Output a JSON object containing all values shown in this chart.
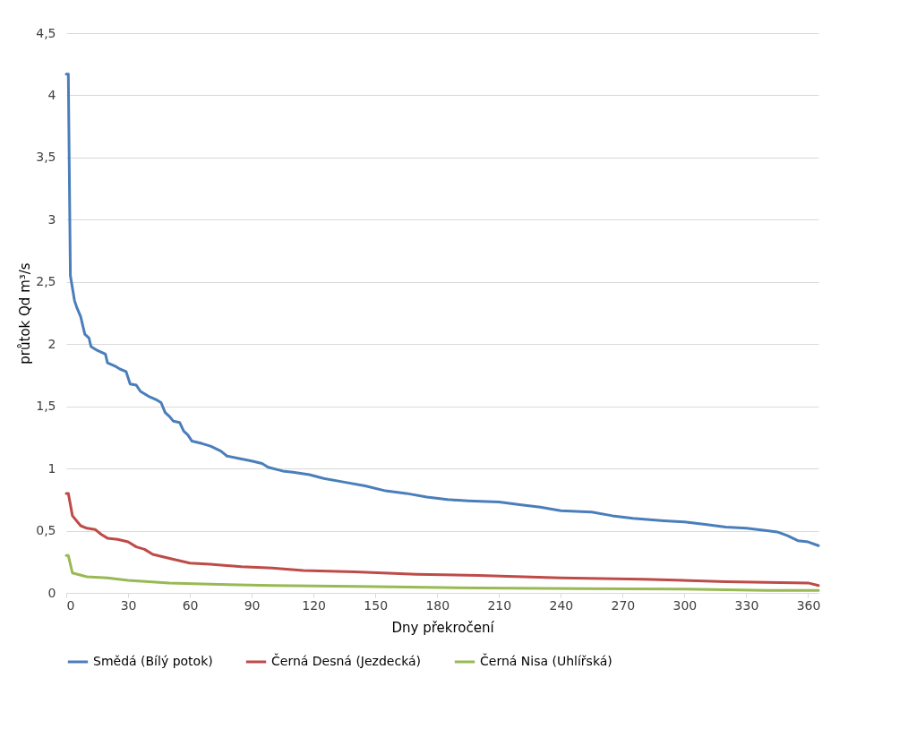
{
  "chart_data": {
    "type": "line",
    "xlabel": "Dny překročení",
    "ylabel": "průtok Qd m³/s",
    "xlim": [
      0,
      365
    ],
    "xticks": [
      0,
      30,
      60,
      90,
      120,
      150,
      180,
      210,
      240,
      270,
      300,
      330,
      360
    ],
    "ylim": [
      0,
      4.5
    ],
    "yticks": [
      0,
      {
        "value": 0.5,
        "label": "0,5"
      },
      1,
      {
        "value": 1.5,
        "label": "1,5"
      },
      2,
      {
        "value": 2.5,
        "label": "2,5"
      },
      3,
      {
        "value": 3.5,
        "label": "3,5"
      },
      4,
      {
        "value": 4.5,
        "label": "4,5"
      }
    ],
    "grid": "y",
    "legend": "bottom",
    "marker": "none",
    "line_style": "solid",
    "series": [
      {
        "name": "Smědá (Bílý potok)",
        "color": "#4a7ebb",
        "x": [
          0,
          1,
          2,
          3,
          4,
          5,
          7,
          8,
          9,
          11,
          12,
          15,
          19,
          20,
          24,
          26,
          29,
          31,
          34,
          36,
          40,
          44,
          46,
          48,
          50,
          52,
          55,
          57,
          59,
          61,
          66,
          70,
          75,
          78,
          84,
          90,
          95,
          98,
          105,
          110,
          118,
          125,
          135,
          145,
          155,
          165,
          175,
          185,
          195,
          210,
          220,
          230,
          240,
          255,
          265,
          275,
          290,
          300,
          310,
          320,
          330,
          340,
          345,
          350,
          355,
          360,
          365
        ],
        "values": [
          4.17,
          4.17,
          2.55,
          2.45,
          2.35,
          2.3,
          2.22,
          2.15,
          2.08,
          2.05,
          1.98,
          1.95,
          1.92,
          1.85,
          1.82,
          1.8,
          1.78,
          1.68,
          1.67,
          1.62,
          1.58,
          1.55,
          1.53,
          1.45,
          1.42,
          1.38,
          1.37,
          1.3,
          1.27,
          1.22,
          1.2,
          1.18,
          1.14,
          1.1,
          1.08,
          1.06,
          1.04,
          1.01,
          0.98,
          0.97,
          0.95,
          0.92,
          0.89,
          0.86,
          0.82,
          0.8,
          0.77,
          0.75,
          0.74,
          0.73,
          0.71,
          0.69,
          0.66,
          0.65,
          0.62,
          0.6,
          0.58,
          0.57,
          0.55,
          0.53,
          0.52,
          0.5,
          0.49,
          0.46,
          0.42,
          0.41,
          0.38
        ]
      },
      {
        "name": "Černá Desná (Jezdecká)",
        "color": "#be4b48",
        "x": [
          0,
          1,
          3,
          5,
          7,
          10,
          14,
          17,
          20,
          25,
          30,
          34,
          38,
          42,
          47,
          52,
          60,
          70,
          85,
          100,
          115,
          140,
          170,
          200,
          240,
          280,
          320,
          340,
          360,
          365
        ],
        "values": [
          0.8,
          0.8,
          0.62,
          0.58,
          0.54,
          0.52,
          0.51,
          0.47,
          0.44,
          0.43,
          0.41,
          0.37,
          0.35,
          0.31,
          0.29,
          0.27,
          0.24,
          0.23,
          0.21,
          0.2,
          0.18,
          0.17,
          0.15,
          0.14,
          0.12,
          0.11,
          0.09,
          0.085,
          0.08,
          0.06
        ]
      },
      {
        "name": "Černá Nisa (Uhlířská)",
        "color": "#98b954",
        "x": [
          0,
          1,
          3,
          10,
          20,
          30,
          50,
          70,
          100,
          150,
          200,
          250,
          300,
          340,
          365
        ],
        "values": [
          0.3,
          0.3,
          0.16,
          0.13,
          0.12,
          0.1,
          0.08,
          0.07,
          0.06,
          0.05,
          0.04,
          0.035,
          0.03,
          0.02,
          0.02
        ]
      }
    ]
  }
}
